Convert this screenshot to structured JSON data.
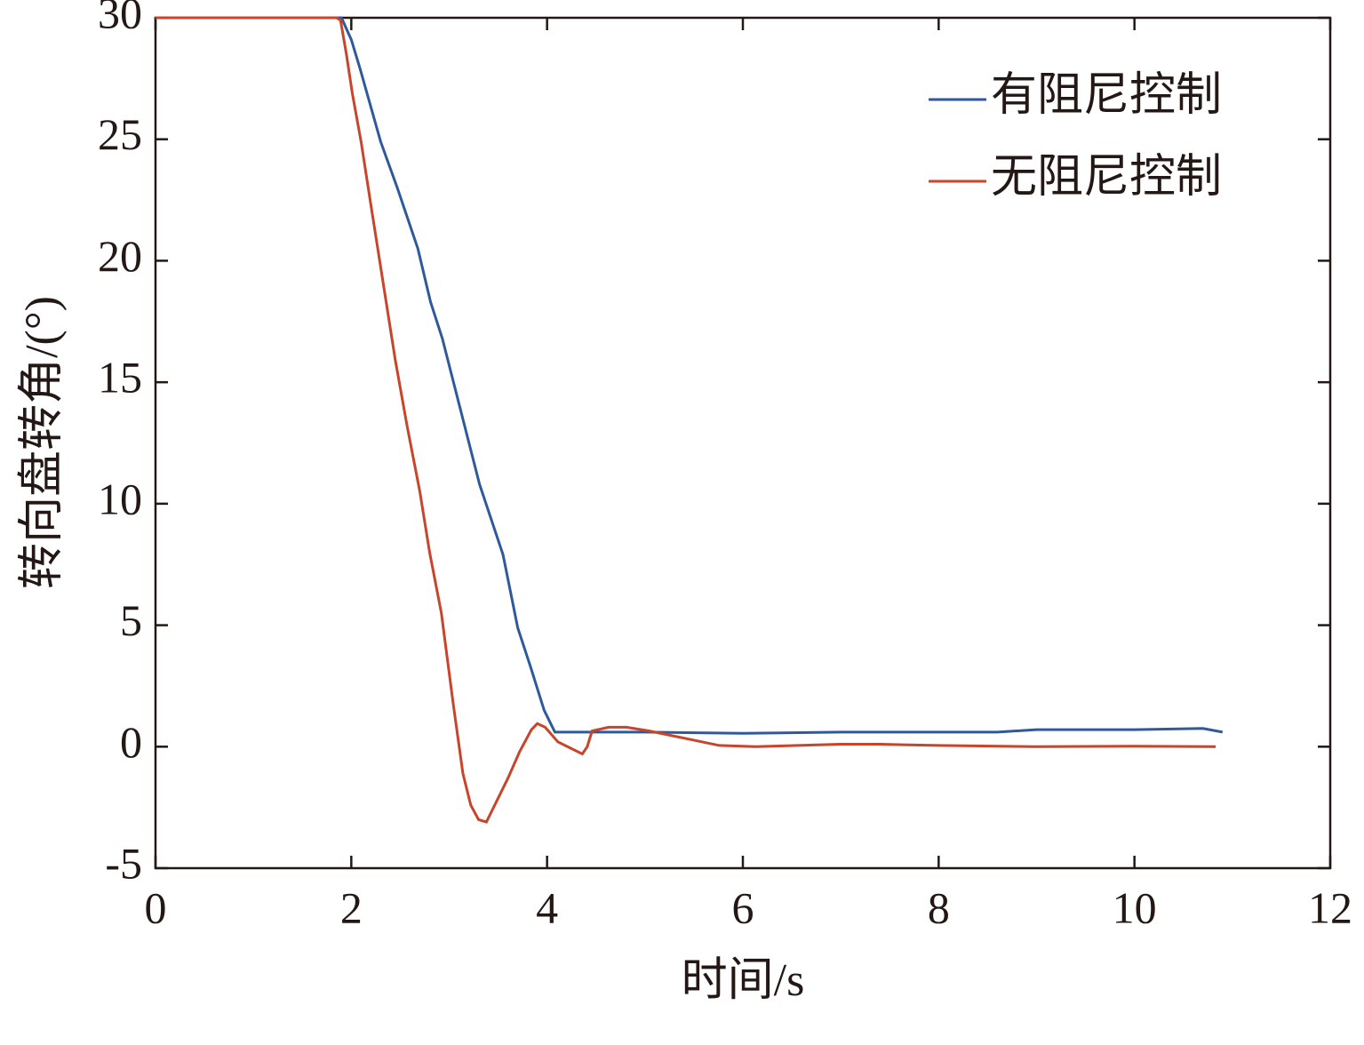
{
  "chart_data": {
    "type": "line",
    "x_label": "时间/s",
    "y_label": "转向盘转角/(°)",
    "xlim": [
      0,
      12
    ],
    "xticks": [
      0,
      2,
      4,
      6,
      8,
      10,
      12
    ],
    "ylim": [
      -5,
      30
    ],
    "yticks": [
      -5,
      0,
      5,
      10,
      15,
      20,
      25,
      30
    ],
    "legend": "upper right",
    "series": [
      {
        "name": "有阻尼控制",
        "color": "#2e5a9c",
        "x": [
          0,
          0.5,
          1,
          1.5,
          1.9,
          2.0,
          2.09,
          2.3,
          2.47,
          2.68,
          2.81,
          2.93,
          3.31,
          3.55,
          3.7,
          3.83,
          3.97,
          4.08,
          5,
          6,
          7,
          8,
          8.6,
          9.0,
          10,
          10.7,
          10.9
        ],
        "values": [
          30,
          30,
          30,
          30,
          30,
          29.1,
          27.9,
          24.9,
          23.0,
          20.5,
          18.3,
          16.8,
          10.8,
          7.9,
          4.9,
          3.3,
          1.5,
          0.6,
          0.6,
          0.55,
          0.6,
          0.6,
          0.6,
          0.7,
          0.7,
          0.75,
          0.6
        ]
      },
      {
        "name": "无阻尼控制",
        "color": "#c8442a",
        "x": [
          0,
          0.5,
          1,
          1.5,
          1.85,
          1.89,
          1.95,
          2.01,
          2.1,
          2.2,
          2.45,
          2.57,
          2.7,
          2.8,
          2.92,
          3.04,
          3.14,
          3.22,
          3.3,
          3.38,
          3.6,
          3.72,
          3.84,
          3.9,
          3.98,
          4.11,
          4.36,
          4.41,
          4.46,
          4.63,
          4.81,
          5.04,
          5.4,
          5.76,
          6.13,
          7,
          7.4,
          8,
          9,
          10,
          10.83
        ],
        "values": [
          30,
          30,
          30,
          30,
          30,
          29.9,
          28.5,
          26.9,
          24.9,
          22.3,
          15.9,
          13.2,
          10.5,
          8.0,
          5.5,
          1.8,
          -1.1,
          -2.4,
          -3.0,
          -3.1,
          -1.3,
          -0.2,
          0.7,
          0.95,
          0.8,
          0.2,
          -0.3,
          0,
          0.65,
          0.8,
          0.8,
          0.65,
          0.35,
          0.05,
          0,
          0.1,
          0.1,
          0.05,
          0,
          0.02,
          0
        ]
      }
    ]
  }
}
